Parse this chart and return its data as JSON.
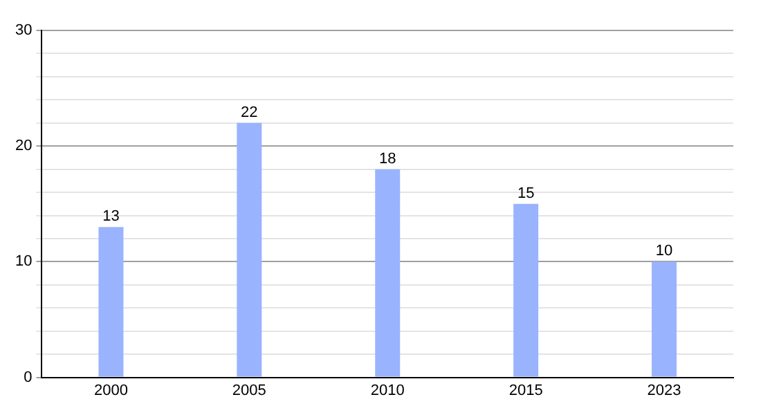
{
  "chart_data": {
    "type": "bar",
    "categories": [
      "2000",
      "2005",
      "2010",
      "2015",
      "2023"
    ],
    "values": [
      13,
      22,
      18,
      15,
      10
    ],
    "color": "#99b3ff",
    "ylim": [
      0,
      30
    ],
    "yticks": [
      0,
      {
        "value": 2,
        "label": null
      },
      {
        "value": 4,
        "label": null
      },
      {
        "value": 6,
        "label": null
      },
      {
        "value": 8,
        "label": null
      },
      10,
      {
        "value": 12,
        "label": null
      },
      {
        "value": 14,
        "label": null
      },
      {
        "value": 16,
        "label": null
      },
      {
        "value": 18,
        "label": null
      },
      20,
      {
        "value": 22,
        "label": null
      },
      {
        "value": 24,
        "label": null
      },
      {
        "value": 26,
        "label": null
      },
      {
        "value": 28,
        "label": null
      },
      30
    ],
    "grid": "y",
    "data_labels": true
  }
}
